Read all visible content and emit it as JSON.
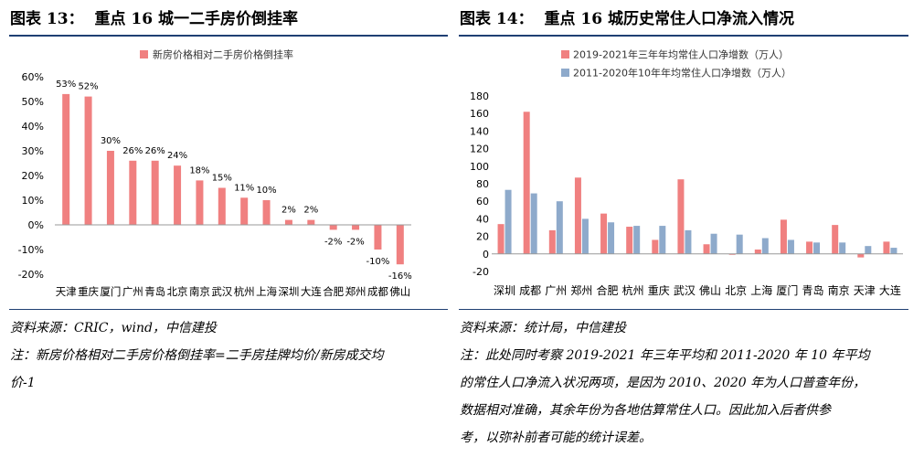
{
  "left": {
    "title_num": "图表 13：",
    "title_text": "重点 16 城一二手房价倒挂率",
    "source": "资料来源：CRIC，wind，中信建投",
    "note_line1": "注：新房价格相对二手房价格倒挂率=二手房挂牌均价/新房成交均",
    "note_line2": "价-1"
  },
  "right": {
    "title_num": "图表 14：",
    "title_text": "重点 16 城历史常住人口净流入情况",
    "source": "资料来源：统计局，中信建投",
    "note_line1": "注：此处同时考察 2019-2021 年三年平均和 2011-2020 年 10 年平均",
    "note_line2": "的常住人口净流入状况两项，是因为 2010、2020 年为人口普查年份，",
    "note_line3": "数据相对准确，其余年份为各地估算常住人口。因此加入后者供参",
    "note_line4": "考，以弥补前者可能的统计误差。"
  },
  "chart_data": [
    {
      "type": "bar",
      "title": "",
      "categories": [
        "天津",
        "重庆",
        "厦门",
        "广州",
        "青岛",
        "北京",
        "南京",
        "武汉",
        "杭州",
        "上海",
        "深圳",
        "大连",
        "合肥",
        "郑州",
        "成都",
        "佛山"
      ],
      "series": [
        {
          "name": "新房价格相对二手房价格倒挂率",
          "values": [
            53,
            52,
            30,
            26,
            26,
            24,
            18,
            15,
            11,
            10,
            2,
            2,
            -2,
            -2,
            -10,
            -16
          ],
          "color": "#f08080"
        }
      ],
      "data_labels": [
        "53%",
        "52%",
        "30%",
        "26%",
        "26%",
        "24%",
        "18%",
        "15%",
        "11%",
        "10%",
        "2%",
        "2%",
        "-2%",
        "-2%",
        "-10%",
        "-16%"
      ],
      "ylim": [
        -20,
        60
      ],
      "yticks": [
        60,
        50,
        40,
        30,
        20,
        10,
        0,
        -10,
        -20
      ],
      "ytick_labels": [
        "60%",
        "50%",
        "40%",
        "30%",
        "20%",
        "10%",
        "0%",
        "-10%",
        "-20%"
      ],
      "legend": "top-center",
      "grid": false
    },
    {
      "type": "bar",
      "title": "",
      "categories": [
        "深圳",
        "成都",
        "广州",
        "郑州",
        "合肥",
        "杭州",
        "重庆",
        "武汉",
        "佛山",
        "北京",
        "上海",
        "厦门",
        "青岛",
        "南京",
        "天津",
        "大连"
      ],
      "series": [
        {
          "name": "2019-2021年三年年均常住人口净增数（万人）",
          "values": [
            34,
            162,
            27,
            87,
            46,
            31,
            16,
            85,
            11,
            -1,
            5,
            39,
            14,
            33,
            -4,
            14
          ],
          "color": "#f08080"
        },
        {
          "name": "2011-2020年10年年均常住人口净增数（万人）",
          "values": [
            73,
            69,
            60,
            40,
            36,
            32,
            32,
            27,
            23,
            22,
            18,
            16,
            13,
            13,
            9,
            7
          ],
          "color": "#8eaacb"
        }
      ],
      "ylim": [
        -20,
        180
      ],
      "yticks": [
        180,
        160,
        140,
        120,
        100,
        80,
        60,
        40,
        20,
        0,
        -20
      ],
      "ytick_labels": [
        "180",
        "160",
        "140",
        "120",
        "100",
        "80",
        "60",
        "40",
        "20",
        "0",
        "-20"
      ],
      "legend": "top-center",
      "grid": false
    }
  ]
}
